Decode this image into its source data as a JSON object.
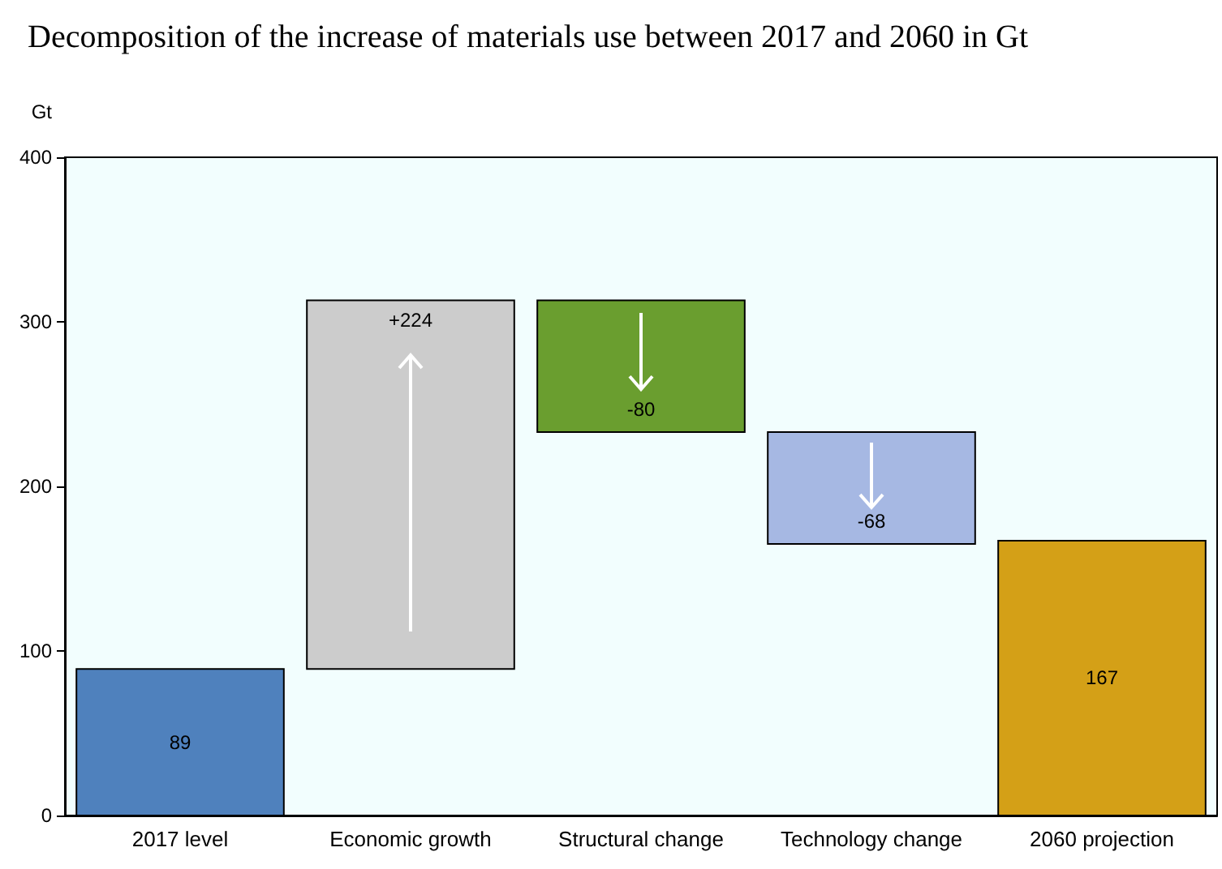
{
  "chart_data": {
    "type": "bar",
    "title": "Decomposition of the increase of materials use between 2017 and 2060 in Gt",
    "ylabel": "Gt",
    "categories": [
      "2017 level",
      "Economic growth",
      "Structural change",
      "Technology change",
      "2060 projection"
    ],
    "values": [
      89,
      224,
      -80,
      -68,
      167
    ],
    "base": [
      0,
      89,
      313,
      233,
      0
    ],
    "colors": [
      "#4f81bd",
      "#cccccc",
      "#6a9e2f",
      "#a6b8e3",
      "#d4a017"
    ],
    "value_labels": [
      "89",
      "+224",
      "-80",
      "-68",
      "167"
    ],
    "ylim": [
      0,
      400
    ],
    "yticks": [
      0,
      100,
      200,
      300,
      400
    ],
    "grid": false
  }
}
